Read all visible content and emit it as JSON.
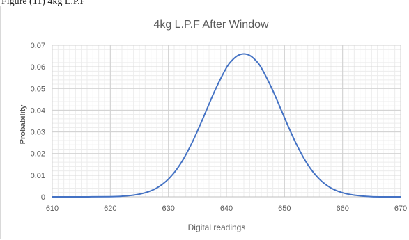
{
  "caption_fragment": "Figure (11) 4kg L.P.F",
  "chart_data": {
    "type": "line",
    "title": "4kg L.P.F After Window",
    "xlabel": "Digital readings",
    "ylabel": "Probability",
    "xlim": [
      610,
      670
    ],
    "ylim": [
      0,
      0.07
    ],
    "xticks": [
      610,
      620,
      630,
      640,
      650,
      660,
      670
    ],
    "yticks": [
      "0",
      "0.01",
      "0.02",
      "0.03",
      "0.04",
      "0.05",
      "0.06",
      "0.07"
    ],
    "grid": true,
    "legend": "none",
    "series": [
      {
        "color": "#4472c4",
        "x": [
          610,
          615,
          620,
          622,
          624,
          626,
          628,
          630,
          632,
          634,
          636,
          638,
          640,
          641,
          642,
          643,
          644,
          645,
          646,
          648,
          650,
          652,
          654,
          656,
          658,
          660,
          662,
          665,
          670
        ],
        "y": [
          0.0,
          0.0,
          0.0001,
          0.0003,
          0.0008,
          0.0019,
          0.0041,
          0.0082,
          0.0149,
          0.0246,
          0.0365,
          0.049,
          0.0596,
          0.0631,
          0.0653,
          0.066,
          0.0653,
          0.0631,
          0.0596,
          0.049,
          0.0365,
          0.0246,
          0.0149,
          0.0082,
          0.0041,
          0.0019,
          0.0008,
          0.0001,
          0.0
        ]
      }
    ]
  }
}
